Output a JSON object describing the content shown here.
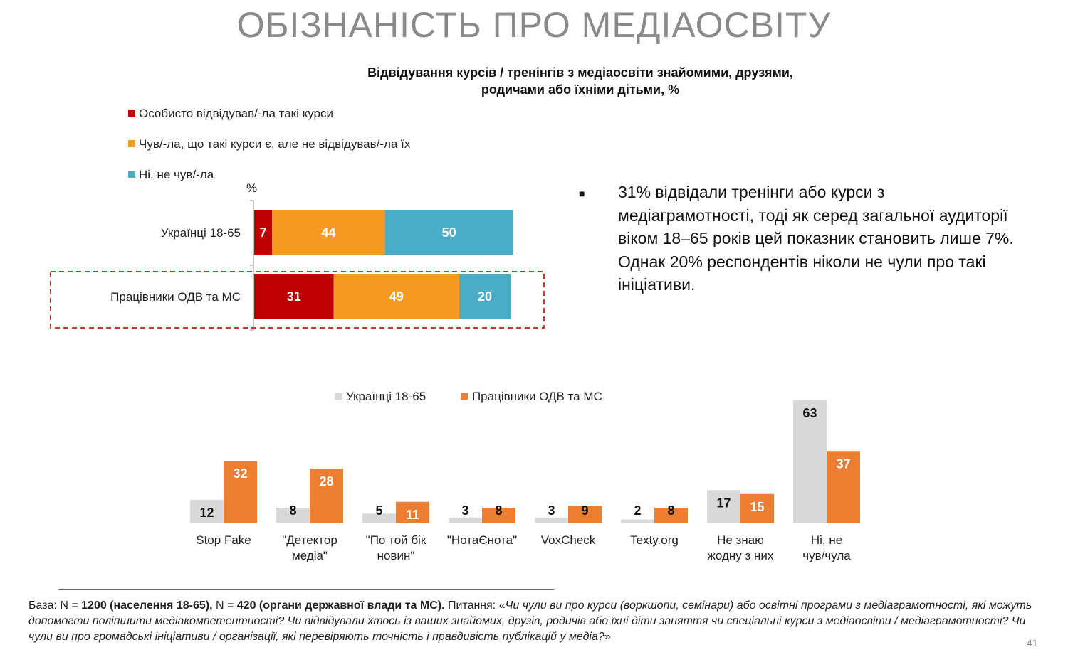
{
  "slide": {
    "title": "ОБІЗНАНІСТЬ ПРО МЕДІАОСВІТУ",
    "page_number": "41"
  },
  "chart1": {
    "title_line1": "Відвідування курсів / тренінгів з медіаосвіти знайомими, друзями,",
    "title_line2": "родичами або їхніми дітьми, %",
    "unit_label": "%"
  },
  "insight": {
    "bullet": "■",
    "text": "31% відвідали тренінги або курси з медіаграмотності, тоді як серед загальної аудиторії віком 18–65 років цей показник становить лише 7%. Однак 20% респондентів ніколи не чули про такі ініціативи."
  },
  "footnote": {
    "base_prefix": "База: N = ",
    "n1": "1200 (населення 18-65),",
    "mid": " N = ",
    "n2": "420 (органи державної влади та МС).",
    "question_prefix": " Питання: «",
    "question": "Чи чули ви про курси (воркшопи, семінари) або освітні програми з медіаграмотності, які можуть допомогти поліпшити медіакомпетентності? Чи відвідували хтось із ваших знайомих, друзів, родичів або їхні діти заняття чи спеціальні курси з медіаосвіти / медіаграмотності? Чи чули ви про громадські ініціативи / організації, які перевіряють точність і правдивість публікацій у медіа?",
    "question_suffix": "»"
  },
  "colors": {
    "red": "#c00000",
    "orange": "#f59a23",
    "teal": "#4bacc6",
    "gray": "#d9d9d9",
    "dark_orange": "#ed7d31",
    "highlight_border": "#c0392b"
  },
  "chart_data": [
    {
      "type": "bar",
      "orientation": "horizontal",
      "stacked": true,
      "title": "Відвідування курсів / тренінгів з медіаосвіти знайомими, друзями, родичами або їхніми дітьми, %",
      "categories": [
        "Українці 18-65",
        "Працівники ОДВ та МС"
      ],
      "series": [
        {
          "name": "Особисто відвідував/-ла такі курси",
          "color": "#c00000",
          "values": [
            7,
            31
          ]
        },
        {
          "name": "Чув/-ла, що такі курси є, але не відвідував/-ла їх",
          "color": "#f59a23",
          "values": [
            44,
            49
          ]
        },
        {
          "name": "Ні, не чув/-ла",
          "color": "#4bacc6",
          "values": [
            50,
            20
          ]
        }
      ],
      "highlighted_category": "Працівники ОДВ та МС",
      "xlim": [
        0,
        100
      ],
      "legend_position": "top-left"
    },
    {
      "type": "bar",
      "orientation": "vertical",
      "categories": [
        "Stop Fake",
        "\"Детектор медіа\"",
        "\"По той бік новин\"",
        "\"НотаЄнота\"",
        "VoxCheck",
        "Texty.org",
        "Не знаю жодну з них",
        "Ні, не чув/чула"
      ],
      "category_lines": [
        [
          "Stop Fake"
        ],
        [
          "\"Детектор",
          "медіа\""
        ],
        [
          "\"По той бік",
          "новин\""
        ],
        [
          "\"НотаЄнота\""
        ],
        [
          "VoxCheck"
        ],
        [
          "Texty.org"
        ],
        [
          "Не знаю",
          "жодну з них"
        ],
        [
          "Ні, не",
          "чув/чула"
        ]
      ],
      "series": [
        {
          "name": "Українці 18-65",
          "color": "#d9d9d9",
          "values": [
            12,
            8,
            5,
            3,
            3,
            2,
            17,
            63
          ]
        },
        {
          "name": "Працівники ОДВ та МС",
          "color": "#ed7d31",
          "values": [
            32,
            28,
            11,
            8,
            9,
            8,
            15,
            37
          ]
        }
      ],
      "ylim": [
        0,
        63
      ],
      "legend_position": "top-center"
    }
  ]
}
